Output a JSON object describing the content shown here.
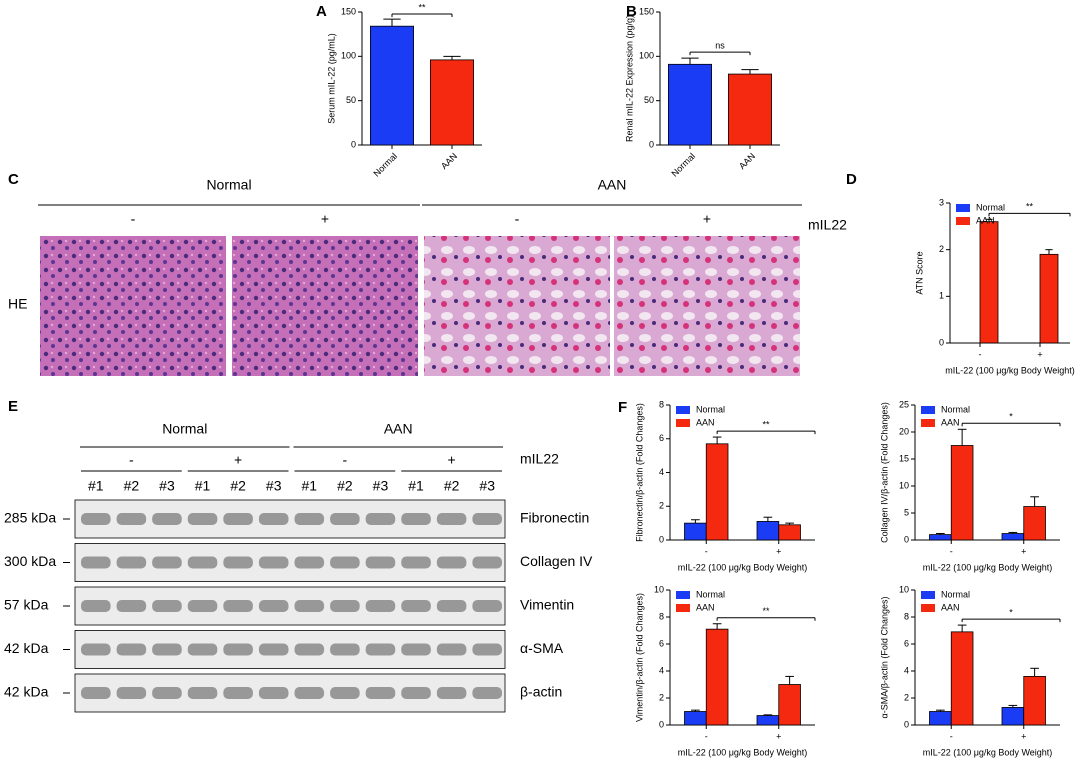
{
  "chart_data": [
    {
      "panel": "A",
      "type": "bar",
      "ylabel": "Serum mIL-22 (pg/mL)",
      "categories": [
        "Normal",
        "AAN"
      ],
      "values": [
        134,
        96
      ],
      "errors": [
        8,
        4
      ],
      "colors": [
        "#1a3cf5",
        "#f5290f"
      ],
      "ylim": [
        0,
        150
      ],
      "yticks": [
        0,
        50,
        100,
        150
      ],
      "significance": "**"
    },
    {
      "panel": "B",
      "type": "bar",
      "ylabel": "Renal mIL-22 Expression (pg/g)",
      "categories": [
        "Normal",
        "AAN"
      ],
      "values": [
        91,
        80
      ],
      "errors": [
        7,
        5
      ],
      "colors": [
        "#1a3cf5",
        "#f5290f"
      ],
      "ylim": [
        0,
        150
      ],
      "yticks": [
        0,
        50,
        100,
        150
      ],
      "significance": "ns"
    },
    {
      "panel": "D",
      "type": "bar",
      "ylabel": "ATN Score",
      "xlabel": "mIL-22 (100 μg/kg Body Weight)",
      "categories": [
        "-",
        "+"
      ],
      "series": [
        {
          "name": "Normal",
          "color": "#1a3cf5",
          "values": [
            0,
            0
          ],
          "errors": [
            0,
            0
          ]
        },
        {
          "name": "AAN",
          "color": "#f5290f",
          "values": [
            2.6,
            1.9
          ],
          "errors": [
            0.05,
            0.1
          ]
        }
      ],
      "ylim": [
        0,
        3
      ],
      "yticks": [
        0,
        1,
        2,
        3
      ],
      "legend": "upper left",
      "significance": "**"
    },
    {
      "panel": "F",
      "type": "bar",
      "ylabel": "Fibronectin/β-actin (Fold Changes)",
      "xlabel": "mIL-22 (100 μg/kg Body Weight)",
      "categories": [
        "-",
        "+"
      ],
      "series": [
        {
          "name": "Normal",
          "color": "#1a3cf5",
          "values": [
            1.0,
            1.1
          ],
          "errors": [
            0.2,
            0.25
          ]
        },
        {
          "name": "AAN",
          "color": "#f5290f",
          "values": [
            5.7,
            0.9
          ],
          "errors": [
            0.4,
            0.1
          ]
        }
      ],
      "ylim": [
        0,
        8
      ],
      "yticks": [
        0,
        2,
        4,
        6,
        8
      ],
      "legend": "upper left",
      "significance": "**"
    },
    {
      "type": "bar",
      "ylabel": "Collagen IV/β-actin (Fold Changes)",
      "xlabel": "mIL-22 (100 μg/kg Body Weight)",
      "categories": [
        "-",
        "+"
      ],
      "series": [
        {
          "name": "Normal",
          "color": "#1a3cf5",
          "values": [
            1.0,
            1.2
          ],
          "errors": [
            0.2,
            0.2
          ]
        },
        {
          "name": "AAN",
          "color": "#f5290f",
          "values": [
            17.5,
            6.2
          ],
          "errors": [
            3.0,
            1.8
          ]
        }
      ],
      "ylim": [
        0,
        25
      ],
      "yticks": [
        0,
        5,
        10,
        15,
        20,
        25
      ],
      "legend": "upper left",
      "significance": "*"
    },
    {
      "type": "bar",
      "ylabel": "Vimentin/β-actin (Fold Changes)",
      "xlabel": "mIL-22 (100 μg/kg Body Weight)",
      "categories": [
        "-",
        "+"
      ],
      "series": [
        {
          "name": "Normal",
          "color": "#1a3cf5",
          "values": [
            1.0,
            0.7
          ],
          "errors": [
            0.1,
            0.05
          ]
        },
        {
          "name": "AAN",
          "color": "#f5290f",
          "values": [
            7.1,
            3.0
          ],
          "errors": [
            0.4,
            0.6
          ]
        }
      ],
      "ylim": [
        0,
        10
      ],
      "yticks": [
        0,
        2,
        4,
        6,
        8,
        10
      ],
      "legend": "upper left",
      "significance": "**"
    },
    {
      "type": "bar",
      "ylabel": "α-SMA/β-actin (Fold Changes)",
      "xlabel": "mIL-22 (100 μg/kg Body Weight)",
      "categories": [
        "-",
        "+"
      ],
      "series": [
        {
          "name": "Normal",
          "color": "#1a3cf5",
          "values": [
            1.0,
            1.3
          ],
          "errors": [
            0.1,
            0.15
          ]
        },
        {
          "name": "AAN",
          "color": "#f5290f",
          "values": [
            6.9,
            3.6
          ],
          "errors": [
            0.5,
            0.6
          ]
        }
      ],
      "ylim": [
        0,
        10
      ],
      "yticks": [
        0,
        2,
        4,
        6,
        8,
        10
      ],
      "legend": "upper left",
      "significance": "*"
    }
  ],
  "histology": {
    "panel": "C",
    "groups": [
      "Normal",
      "AAN"
    ],
    "treatments": [
      "-",
      "+",
      "-",
      "+"
    ],
    "treatment_label": "mIL22",
    "stain": "HE"
  },
  "western_blot": {
    "panel": "E",
    "groups": [
      "Normal",
      "AAN"
    ],
    "treatments": [
      "-",
      "+",
      "-",
      "+"
    ],
    "treatment_label": "mIL22",
    "lanes": [
      "#1",
      "#2",
      "#3",
      "#1",
      "#2",
      "#3",
      "#1",
      "#2",
      "#3",
      "#1",
      "#2",
      "#3"
    ],
    "rows": [
      {
        "size": "285 kDa",
        "protein": "Fibronectin"
      },
      {
        "size": "300 kDa",
        "protein": "Collagen IV"
      },
      {
        "size": "57 kDa",
        "protein": "Vimentin"
      },
      {
        "size": "42 kDa",
        "protein": "α-SMA"
      },
      {
        "size": "42 kDa",
        "protein": "β-actin"
      }
    ]
  }
}
